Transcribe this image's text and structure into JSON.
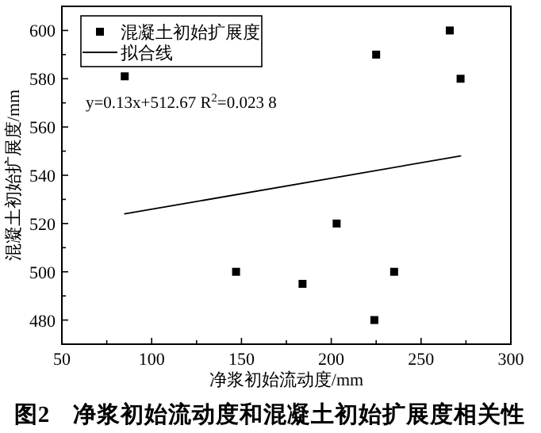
{
  "chart_data": {
    "type": "scatter",
    "title": "图2　净浆初始流动度和混凝土初始扩展度相关性",
    "xlabel": "净浆初始流动度/mm",
    "ylabel": "混凝土初始扩展度/mm",
    "xlim": [
      50,
      300
    ],
    "ylim": [
      470,
      610
    ],
    "xticks": [
      50,
      {
        "value": 75,
        "label": null
      },
      100,
      {
        "value": 125,
        "label": null
      },
      150,
      {
        "value": 175,
        "label": null
      },
      200,
      {
        "value": 225,
        "label": null
      },
      250,
      {
        "value": 275,
        "label": null
      },
      300
    ],
    "yticks": [
      480,
      {
        "value": 490,
        "label": null
      },
      500,
      {
        "value": 510,
        "label": null
      },
      520,
      {
        "value": 530,
        "label": null
      },
      540,
      {
        "value": 550,
        "label": null
      },
      560,
      {
        "value": 570,
        "label": null
      },
      580,
      {
        "value": 590,
        "label": null
      },
      600
    ],
    "legend": "top left",
    "grid": false,
    "annotations": [
      "y=0.13x+512.67 R$^{2}$=0.023 8"
    ],
    "series": [
      {
        "name": "混凝土初始扩展度",
        "marker": "square",
        "color": "#000000",
        "x": [
          85,
          147,
          184,
          203,
          224,
          225,
          235,
          266,
          272
        ],
        "values": [
          581,
          500,
          495,
          520,
          480,
          590,
          500,
          600,
          580
        ]
      },
      {
        "name": "拟合线",
        "type": "line",
        "marker": "none",
        "line_style": "solid",
        "color": "#000000",
        "x": [
          85,
          272
        ],
        "values": [
          524,
          548
        ]
      }
    ]
  }
}
